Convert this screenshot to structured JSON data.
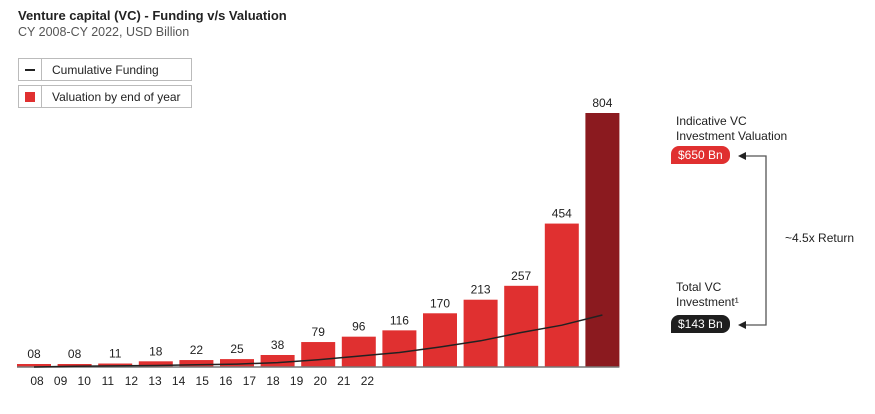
{
  "chart_data": {
    "type": "bar",
    "title": "Venture capital (VC) - Funding v/s Valuation",
    "subtitle": "CY 2008-CY 2022, USD Billion",
    "tick_labels": [
      "08",
      "09",
      "10",
      "11",
      "12",
      "13",
      "14",
      "15",
      "16",
      "17",
      "18",
      "19",
      "20",
      "21",
      "22"
    ],
    "series": [
      {
        "name": "Valuation by end of year",
        "kind": "bar",
        "values": [
          8,
          8,
          11,
          18,
          22,
          25,
          38,
          79,
          96,
          116,
          170,
          213,
          257,
          454,
          804
        ],
        "value_labels": [
          "08",
          "08",
          "11",
          "18",
          "22",
          "25",
          "38",
          "79",
          "96",
          "116",
          "170",
          "213",
          "257",
          "454",
          "804"
        ]
      },
      {
        "name": "Cumulative Funding",
        "kind": "line",
        "values": [
          0,
          2,
          3,
          4,
          6,
          8,
          12,
          20,
          30,
          40,
          55,
          72,
          95,
          115,
          143
        ]
      }
    ],
    "ylim": [
      0,
      804
    ],
    "grid": false,
    "legend": "top-left"
  },
  "colors": {
    "bar": "#e03030",
    "last_bar": "#8b1a1f",
    "line": "#222222",
    "pill_red": "#e03030",
    "pill_black": "#1e1e1e"
  },
  "annotations": {
    "valuation_label": "Indicative VC Investment Valuation",
    "valuation_value": "$650 Bn",
    "investment_label": "Total VC Investment¹",
    "investment_value": "$143 Bn",
    "return_label": "~4.5x Return"
  }
}
